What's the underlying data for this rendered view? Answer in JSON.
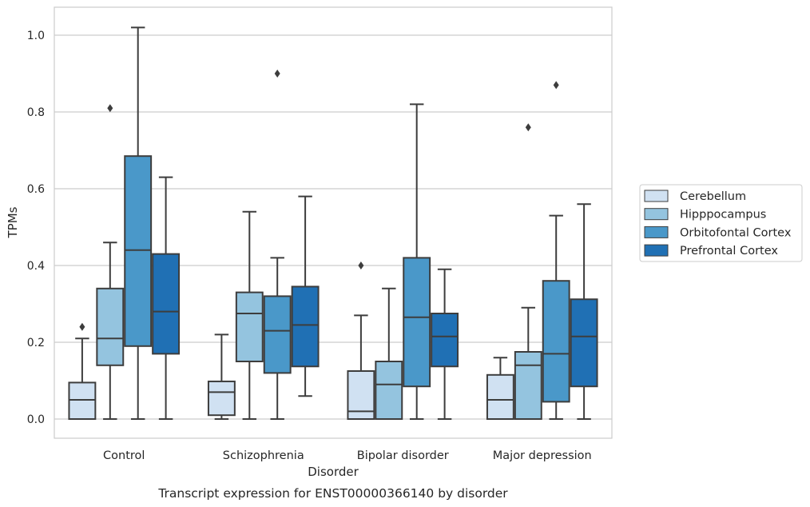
{
  "chart_data": {
    "type": "box",
    "title": "",
    "caption": "Transcript expression for ENST00000366140 by disorder",
    "xlabel": "Disorder",
    "ylabel": "TPMs",
    "categories": [
      "Control",
      "Schizophrenia",
      "Bipolar disorder",
      "Major depression"
    ],
    "ylim": [
      -0.05,
      1.07
    ],
    "yticks": [
      "0.0",
      "0.2",
      "0.4",
      "0.6",
      "0.8",
      "1.0"
    ],
    "grid": "horizontal",
    "legend_position": "right",
    "series": [
      {
        "name": "Cerebellum",
        "color": "#d0e1f2",
        "boxes": [
          {
            "min": 0.0,
            "q1": 0.0,
            "median": 0.05,
            "q3": 0.095,
            "max": 0.21,
            "outliers": [
              0.24
            ]
          },
          {
            "min": 0.0,
            "q1": 0.01,
            "median": 0.07,
            "q3": 0.098,
            "max": 0.22,
            "outliers": []
          },
          {
            "min": 0.0,
            "q1": 0.0,
            "median": 0.02,
            "q3": 0.125,
            "max": 0.27,
            "outliers": [
              0.4
            ]
          },
          {
            "min": 0.0,
            "q1": 0.0,
            "median": 0.05,
            "q3": 0.115,
            "max": 0.16,
            "outliers": []
          }
        ]
      },
      {
        "name": "Hipppocampus",
        "color": "#94c4df",
        "boxes": [
          {
            "min": 0.0,
            "q1": 0.14,
            "median": 0.21,
            "q3": 0.34,
            "max": 0.46,
            "outliers": [
              0.81
            ]
          },
          {
            "min": 0.0,
            "q1": 0.15,
            "median": 0.275,
            "q3": 0.33,
            "max": 0.54,
            "outliers": []
          },
          {
            "min": 0.0,
            "q1": 0.0,
            "median": 0.09,
            "q3": 0.15,
            "max": 0.34,
            "outliers": []
          },
          {
            "min": 0.0,
            "q1": 0.0,
            "median": 0.14,
            "q3": 0.175,
            "max": 0.29,
            "outliers": [
              0.76
            ]
          }
        ]
      },
      {
        "name": "Orbitofontal Cortex",
        "color": "#4a98c9",
        "boxes": [
          {
            "min": 0.0,
            "q1": 0.19,
            "median": 0.44,
            "q3": 0.685,
            "max": 1.02,
            "outliers": []
          },
          {
            "min": 0.0,
            "q1": 0.12,
            "median": 0.23,
            "q3": 0.32,
            "max": 0.42,
            "outliers": [
              0.9
            ]
          },
          {
            "min": 0.0,
            "q1": 0.085,
            "median": 0.265,
            "q3": 0.42,
            "max": 0.82,
            "outliers": []
          },
          {
            "min": 0.0,
            "q1": 0.045,
            "median": 0.17,
            "q3": 0.36,
            "max": 0.53,
            "outliers": [
              0.87
            ]
          }
        ]
      },
      {
        "name": "Prefrontal Cortex",
        "color": "#2070b4",
        "boxes": [
          {
            "min": 0.0,
            "q1": 0.17,
            "median": 0.28,
            "q3": 0.43,
            "max": 0.63,
            "outliers": []
          },
          {
            "min": 0.06,
            "q1": 0.137,
            "median": 0.245,
            "q3": 0.345,
            "max": 0.58,
            "outliers": []
          },
          {
            "min": 0.0,
            "q1": 0.137,
            "median": 0.215,
            "q3": 0.275,
            "max": 0.39,
            "outliers": []
          },
          {
            "min": 0.0,
            "q1": 0.085,
            "median": 0.215,
            "q3": 0.312,
            "max": 0.56,
            "outliers": []
          }
        ]
      }
    ]
  }
}
